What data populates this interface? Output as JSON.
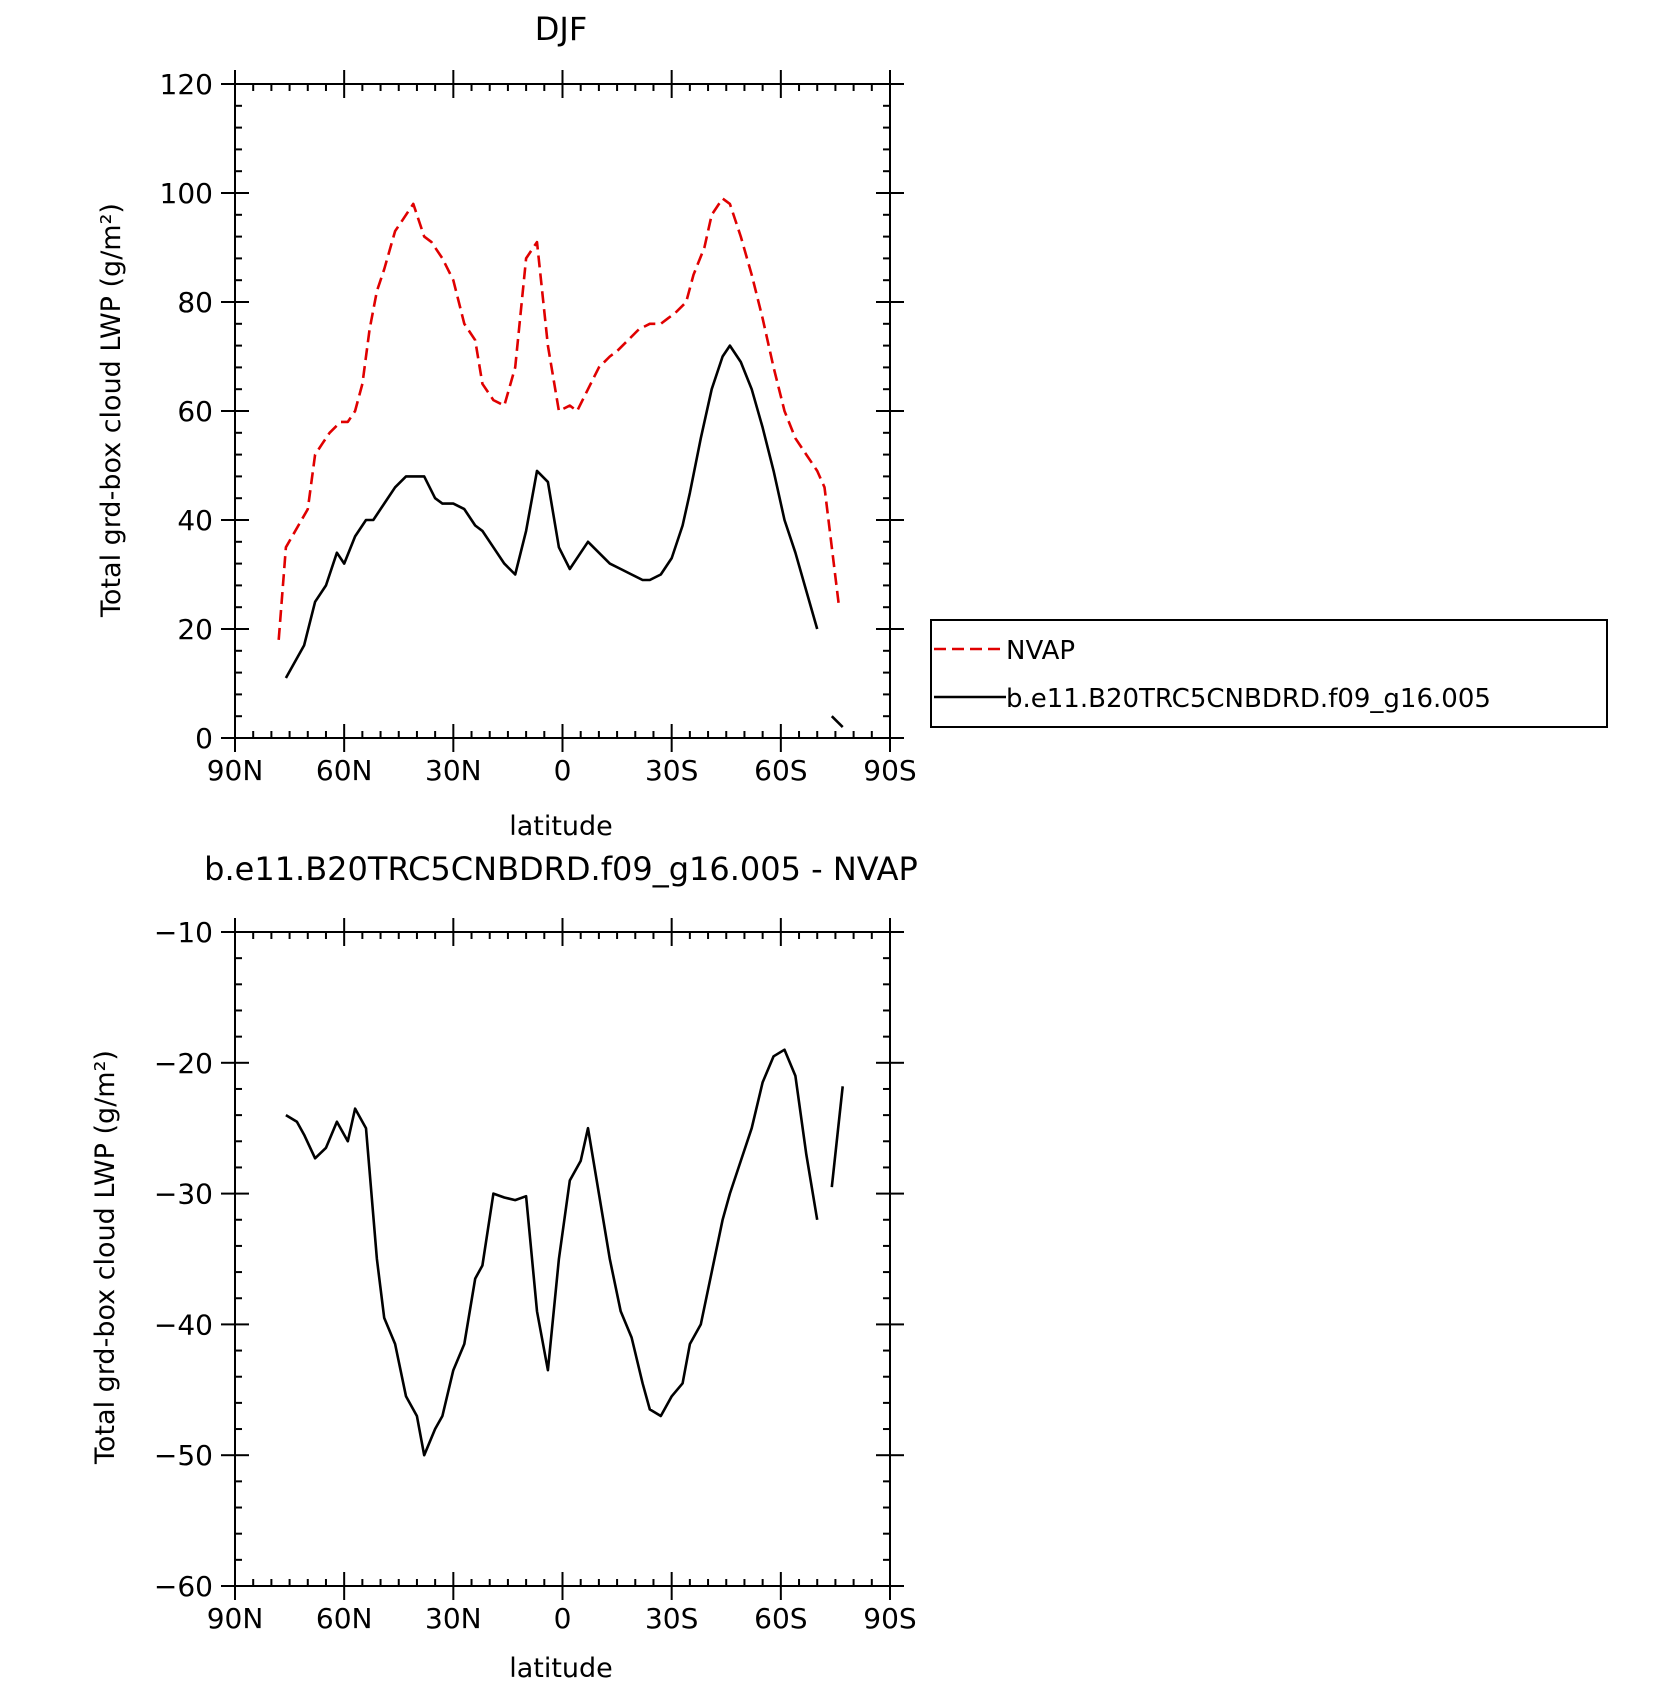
{
  "chart_data": [
    {
      "type": "line",
      "title": "DJF",
      "xlabel": "latitude",
      "ylabel": "Total grd-box cloud LWP (g/m²)",
      "xlim": [
        90,
        -90
      ],
      "ylim": [
        0,
        120
      ],
      "x_tick_labels": [
        "90N",
        "60N",
        "30N",
        "0",
        "30S",
        "60S",
        "90S"
      ],
      "y_tick_labels": [
        "0",
        "20",
        "40",
        "60",
        "80",
        "100",
        "120"
      ],
      "grid": false,
      "legend": {
        "position": "right",
        "entries": [
          "NVAP",
          "b.e11.B20TRC5CNBDRD.f09_g16.005"
        ]
      },
      "series": [
        {
          "name": "NVAP",
          "color": "#e00000",
          "dash": "dashed",
          "x": [
            78,
            76,
            70,
            68,
            66,
            64,
            61,
            59,
            57,
            55,
            53,
            51,
            49,
            46,
            44,
            41,
            38,
            36,
            33,
            30,
            27,
            24,
            22,
            19,
            16,
            13,
            10,
            7,
            4,
            1,
            -2,
            -4,
            -7,
            -10,
            -13,
            -15,
            -18,
            -21,
            -24,
            -27,
            -29,
            -31,
            -34,
            -36,
            -39,
            -41,
            -44,
            -46,
            -49,
            -52,
            -55,
            -58,
            -61,
            -64,
            -67,
            -70,
            -72,
            -74,
            -76
          ],
          "y": [
            18,
            35,
            42,
            52,
            54,
            56,
            58,
            58,
            60,
            65,
            75,
            82,
            86,
            93,
            95,
            98,
            92,
            91,
            88,
            84,
            76,
            73,
            65,
            62,
            61,
            68,
            88,
            91,
            72,
            60,
            61,
            60,
            64,
            68,
            70,
            71,
            73,
            75,
            76,
            76,
            77,
            78,
            80,
            85,
            90,
            96,
            99,
            98,
            92,
            85,
            77,
            68,
            60,
            55,
            52,
            49,
            46,
            35,
            24
          ]
        },
        {
          "name": "b.e11.B20TRC5CNBDRD.f09_g16.005",
          "color": "#000000",
          "dash": "solid",
          "segments": [
            {
              "x": [
                76,
                71,
                68,
                65,
                62,
                60,
                57,
                54,
                52,
                49,
                46,
                43,
                41,
                38,
                35,
                33,
                30,
                27,
                24,
                22,
                19,
                16,
                13,
                10,
                7,
                4,
                1,
                -2,
                -5,
                -7,
                -10,
                -13,
                -16,
                -19,
                -22,
                -24,
                -27,
                -30,
                -33,
                -35,
                -38,
                -41,
                -44,
                -46,
                -49,
                -52,
                -55,
                -58,
                -61,
                -64,
                -67,
                -70
              ],
              "y": [
                11,
                17,
                25,
                28,
                34,
                32,
                37,
                40,
                40,
                43,
                46,
                48,
                48,
                48,
                44,
                43,
                43,
                42,
                39,
                38,
                35,
                32,
                30,
                38,
                49,
                47,
                35,
                31,
                34,
                36,
                34,
                32,
                31,
                30,
                29,
                29,
                30,
                33,
                39,
                45,
                55,
                64,
                70,
                72,
                69,
                64,
                57,
                49,
                40,
                34,
                27,
                20
              ]
            },
            {
              "x": [
                -74,
                -77
              ],
              "y": [
                4,
                2
              ]
            }
          ]
        }
      ]
    },
    {
      "type": "line",
      "title": "b.e11.B20TRC5CNBDRD.f09_g16.005 - NVAP",
      "xlabel": "latitude",
      "ylabel": "Total grd-box cloud LWP (g/m²)",
      "xlim": [
        90,
        -90
      ],
      "ylim": [
        -60,
        -10
      ],
      "x_tick_labels": [
        "90N",
        "60N",
        "30N",
        "0",
        "30S",
        "60S",
        "90S"
      ],
      "y_tick_labels": [
        "−60",
        "−50",
        "−40",
        "−30",
        "−20",
        "−10"
      ],
      "grid": false,
      "series": [
        {
          "color": "#000000",
          "dash": "solid",
          "segments": [
            {
              "x": [
                76,
                73,
                71,
                68,
                65,
                62,
                59,
                57,
                54,
                51,
                49,
                46,
                43,
                40,
                38,
                35,
                33,
                30,
                27,
                24,
                22,
                19,
                16,
                13,
                10,
                7,
                4,
                1,
                -2,
                -5,
                -7,
                -10,
                -13,
                -16,
                -19,
                -22,
                -24,
                -27,
                -30,
                -33,
                -35,
                -38,
                -41,
                -44,
                -46,
                -49,
                -52,
                -55,
                -58,
                -61,
                -64,
                -67,
                -70
              ],
              "y": [
                -24,
                -24.5,
                -25.5,
                -27.3,
                -26.5,
                -24.5,
                -26,
                -23.5,
                -25,
                -35,
                -39.5,
                -41.5,
                -45.5,
                -47,
                -50,
                -48,
                -47,
                -43.5,
                -41.5,
                -36.5,
                -35.5,
                -30,
                -30.3,
                -30.5,
                -30.2,
                -39,
                -43.5,
                -35,
                -29,
                -27.5,
                -25,
                -30,
                -35,
                -39,
                -41,
                -44.5,
                -46.5,
                -47,
                -45.5,
                -44.5,
                -41.5,
                -40,
                -36,
                -32,
                -30,
                -27.5,
                -25,
                -21.5,
                -19.5,
                -19,
                -21,
                -27,
                -32
              ]
            },
            {
              "x": [
                -74,
                -77
              ],
              "y": [
                -29.5,
                -21.8
              ]
            }
          ]
        }
      ]
    }
  ]
}
